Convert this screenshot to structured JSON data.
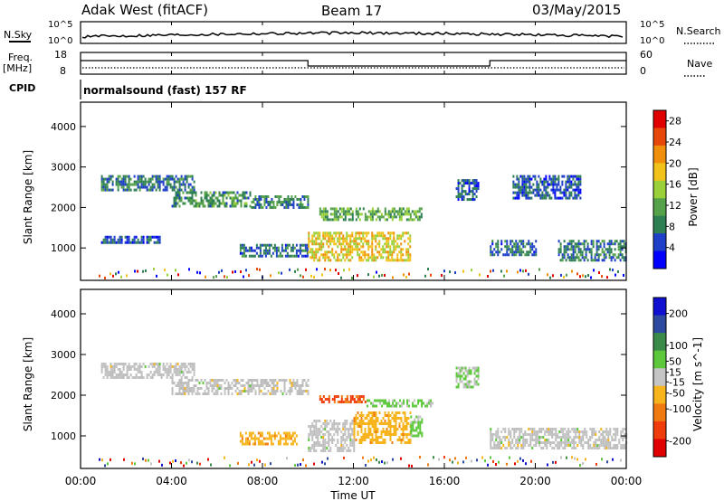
{
  "header": {
    "title": "Adak West (fitACF)",
    "beam": "Beam 17",
    "date": "03/May/2015"
  },
  "top_panels": {
    "nsky_label": "N.Sky",
    "nsearch_label": "N.Search",
    "nsky_ticks": [
      "10^5",
      "10^0"
    ],
    "nsearch_ticks": [
      "10^5",
      "10^0"
    ],
    "freq_label": "Freq.",
    "freq_unit": "[MHz]",
    "freq_ticks": [
      "18",
      "8"
    ],
    "nave_label": "Nave",
    "nave_ticks": [
      "60",
      "0"
    ],
    "cpid_label": "CPID",
    "cpid_value": "normalsound (fast) 157 RF"
  },
  "colors": {
    "power_scale": [
      "#0000ff",
      "#1e3fc8",
      "#2f7f55",
      "#55a24a",
      "#9ad13a",
      "#f2c21a",
      "#f08f0c",
      "#e8470a",
      "#e00000"
    ],
    "velocity_scale": [
      "#e00000",
      "#f03c0a",
      "#f07a12",
      "#f7b41c",
      "#c4c4c4",
      "#5ec83c",
      "#3a8a4a",
      "#2d4aa0",
      "#1010d0"
    ],
    "ground_scatter": "#bdbdbd"
  },
  "chart_data": [
    {
      "type": "heatmap",
      "name": "power",
      "ylabel": "Slant Range [km]",
      "yticks": [
        "1000",
        "2000",
        "3000",
        "4000"
      ],
      "ylim": [
        200,
        4600
      ],
      "xlim": [
        0,
        24
      ],
      "colorbar": {
        "label": "Power [dB]",
        "ticks": [
          "4",
          "8",
          "12",
          "16",
          "20",
          "24",
          "28"
        ],
        "range": [
          0,
          30
        ]
      },
      "echo_regions": [
        {
          "t_start": 0.9,
          "t_end": 5.0,
          "r_start": 2400,
          "r_end": 2800,
          "value": 8
        },
        {
          "t_start": 4.0,
          "t_end": 7.5,
          "r_start": 2000,
          "r_end": 2400,
          "value": 10
        },
        {
          "t_start": 7.5,
          "t_end": 10.0,
          "r_start": 2000,
          "r_end": 2300,
          "value": 9
        },
        {
          "t_start": 0.9,
          "t_end": 3.5,
          "r_start": 1100,
          "r_end": 1300,
          "value": 6
        },
        {
          "t_start": 7.0,
          "t_end": 10.0,
          "r_start": 800,
          "r_end": 1100,
          "value": 7
        },
        {
          "t_start": 10.0,
          "t_end": 14.5,
          "r_start": 700,
          "r_end": 1400,
          "value": 18
        },
        {
          "t_start": 10.5,
          "t_end": 15.0,
          "r_start": 1700,
          "r_end": 2000,
          "value": 12
        },
        {
          "t_start": 16.5,
          "t_end": 17.5,
          "r_start": 2200,
          "r_end": 2700,
          "value": 6
        },
        {
          "t_start": 18.0,
          "t_end": 20.0,
          "r_start": 800,
          "r_end": 1200,
          "value": 7
        },
        {
          "t_start": 19.0,
          "t_end": 22.0,
          "r_start": 2200,
          "r_end": 2800,
          "value": 6
        },
        {
          "t_start": 21.0,
          "t_end": 24.0,
          "r_start": 700,
          "r_end": 1200,
          "value": 8
        }
      ]
    },
    {
      "type": "heatmap",
      "name": "velocity",
      "ylabel": "Slant Range [km]",
      "yticks": [
        "1000",
        "2000",
        "3000",
        "4000"
      ],
      "ylim": [
        200,
        4600
      ],
      "xlabel": "Time UT",
      "xticks": [
        "00:00",
        "04:00",
        "08:00",
        "12:00",
        "16:00",
        "20:00",
        "00:00"
      ],
      "xlim": [
        0,
        24
      ],
      "colorbar": {
        "label": "Velocity [m s^-1]",
        "ticks": [
          "-200",
          "-100",
          "-50",
          "-15",
          "15",
          "50",
          "100",
          "200"
        ],
        "range": [
          -250,
          250
        ]
      },
      "echo_regions": [
        {
          "t_start": 0.9,
          "t_end": 5.0,
          "r_start": 2400,
          "r_end": 2800,
          "value": 0
        },
        {
          "t_start": 4.0,
          "t_end": 10.0,
          "r_start": 2000,
          "r_end": 2400,
          "value": 0
        },
        {
          "t_start": 10.5,
          "t_end": 12.5,
          "r_start": 1850,
          "r_end": 2000,
          "value": -150
        },
        {
          "t_start": 12.5,
          "t_end": 15.5,
          "r_start": 1700,
          "r_end": 1900,
          "value": 40
        },
        {
          "t_start": 7.0,
          "t_end": 9.5,
          "r_start": 800,
          "r_end": 1100,
          "value": -60
        },
        {
          "t_start": 10.0,
          "t_end": 12.0,
          "r_start": 600,
          "r_end": 1400,
          "value": 0
        },
        {
          "t_start": 12.0,
          "t_end": 14.5,
          "r_start": 800,
          "r_end": 1600,
          "value": -60
        },
        {
          "t_start": 14.5,
          "t_end": 15.0,
          "r_start": 1000,
          "r_end": 1500,
          "value": 40
        },
        {
          "t_start": 18.0,
          "t_end": 24.0,
          "r_start": 700,
          "r_end": 1200,
          "value": 0
        },
        {
          "t_start": 16.5,
          "t_end": 17.5,
          "r_start": 2200,
          "r_end": 2700,
          "value": 30
        }
      ]
    }
  ]
}
